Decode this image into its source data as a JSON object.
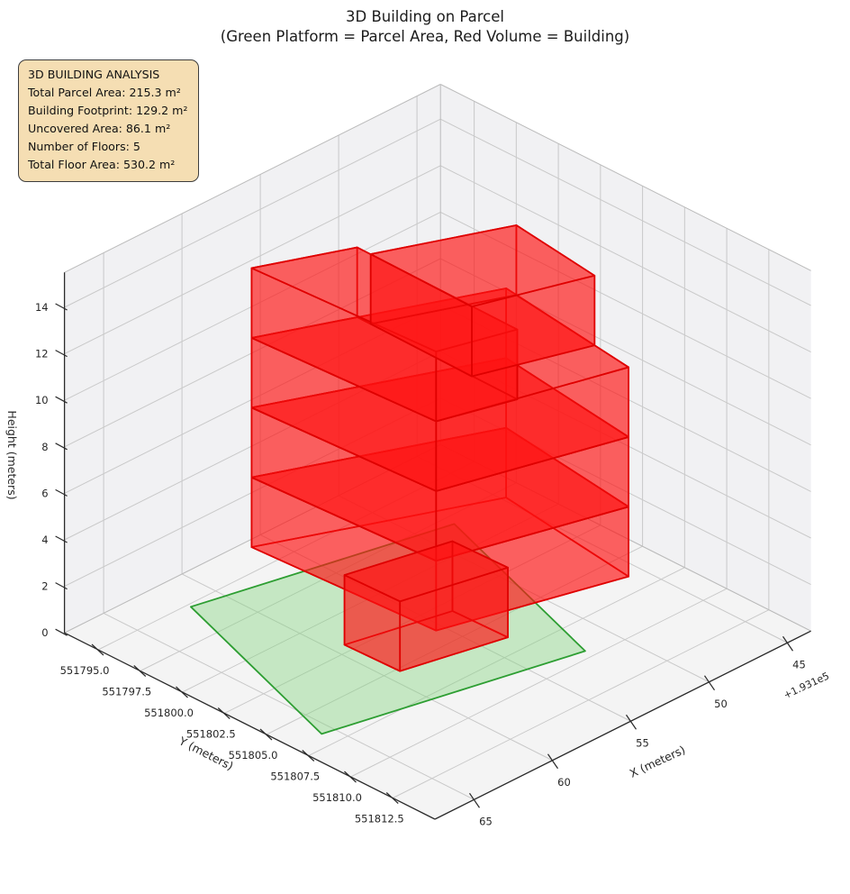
{
  "title": {
    "line1": "3D Building on Parcel",
    "line2": "(Green Platform = Parcel Area, Red Volume = Building)"
  },
  "analysis_box": {
    "title": "3D BUILDING ANALYSIS",
    "lines": [
      "Total Parcel Area: 215.3 m²",
      "Building Footprint: 129.2 m²",
      "Uncovered Area: 86.1 m²",
      "Number of Floors: 5",
      "Total Floor Area: 530.2 m²"
    ]
  },
  "chart_data": {
    "type": "3d-building-scene",
    "title": "3D Building on Parcel",
    "subtitle": "(Green Platform = Parcel Area, Red Volume = Building)",
    "axes": {
      "x": {
        "label": "X (meters)",
        "ticks": [
          45,
          50,
          55,
          60,
          65
        ],
        "offset_text": "+1.931e5",
        "range": [
          43.5,
          67.5
        ]
      },
      "y": {
        "label": "Y (meters)",
        "ticks": [
          551795.0,
          551797.5,
          551800.0,
          551802.5,
          551805.0,
          551807.5,
          551810.0,
          551812.5
        ],
        "range": [
          551793.0,
          551815.0
        ]
      },
      "z": {
        "label": "Height (meters)",
        "ticks": [
          0,
          2,
          4,
          6,
          8,
          10,
          12,
          14
        ],
        "range": [
          0,
          15.5
        ]
      }
    },
    "parcel": {
      "name": "parcel-platform",
      "z": 0,
      "polygon": [
        [
          61.8,
          551795.2
        ],
        [
          65.7,
          551806.6
        ],
        [
          52.0,
          551809.5
        ],
        [
          48.1,
          551798.1
        ]
      ],
      "fill": "#7fd47a",
      "fill_opacity": 0.4,
      "edge": "#2d9e32"
    },
    "building": {
      "fill": "#ff1414",
      "fill_opacity": 0.42,
      "edge": "#df0000",
      "floor_height_m": 3,
      "num_floors": 5,
      "floors": [
        {
          "name": "floor-1-ground-annex",
          "z0": 0,
          "z1": 3,
          "polygon": [
            [
              59.3,
              551802.0
            ],
            [
              53.7,
              551803.2
            ],
            [
              53.6,
              551806.4
            ],
            [
              59.2,
              551805.2
            ]
          ]
        },
        {
          "name": "floor-2",
          "z0": 3,
          "z1": 6,
          "polygon": [
            [
              60.5,
              551797.6
            ],
            [
              49.2,
              551802.2
            ],
            [
              50.3,
              551810.5
            ],
            [
              59.9,
              551808.0
            ]
          ]
        },
        {
          "name": "floor-3",
          "z0": 6,
          "z1": 9,
          "polygon": [
            [
              60.5,
              551797.6
            ],
            [
              49.2,
              551802.2
            ],
            [
              50.3,
              551810.5
            ],
            [
              59.9,
              551808.0
            ]
          ]
        },
        {
          "name": "floor-4",
          "z0": 9,
          "z1": 12,
          "polygon": [
            [
              60.5,
              551797.6
            ],
            [
              49.2,
              551802.2
            ],
            [
              50.3,
              551810.5
            ],
            [
              59.9,
              551808.0
            ]
          ]
        },
        {
          "name": "floor-5-left-wing",
          "z0": 12,
          "z1": 15,
          "polygon": [
            [
              60.5,
              551797.6
            ],
            [
              55.8,
              551799.5
            ],
            [
              55.9,
              551809.1
            ],
            [
              59.9,
              551808.0
            ]
          ]
        },
        {
          "name": "floor-5-right-wing",
          "z0": 12,
          "z1": 15,
          "polygon": [
            [
              55.8,
              551800.3
            ],
            [
              49.3,
              551802.9
            ],
            [
              50.0,
              551808.2
            ],
            [
              55.9,
              551806.4
            ]
          ]
        }
      ]
    },
    "style": {
      "pane_wall": "#f1f1f3",
      "pane_floor": "#f4f4f4",
      "grid": "#c9c9c9",
      "pane_edge": "#bbbbbb",
      "spine": "#2a2a2a",
      "tick_text": "#262626",
      "title_text": "#1c1c1c",
      "box_bg": "#f5deb3"
    }
  }
}
